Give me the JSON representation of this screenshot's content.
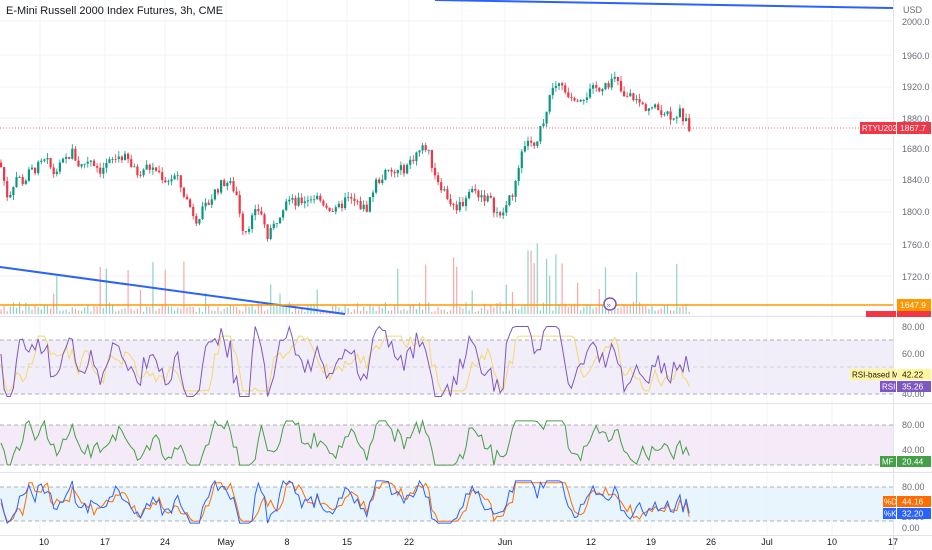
{
  "title": "E-Mini Russell 2000 Index Futures, 3h, CME",
  "currency": "USD",
  "colors": {
    "up": "#089981",
    "down": "#f23645",
    "vol_up": "#8fd3c7",
    "vol_down": "#f7a9a7",
    "grid": "#f0f3fa",
    "text": "#131722",
    "axis_text": "#6a6d78",
    "trend": "#2962ff",
    "level": "#ff9800",
    "rsi": "#7e57c2",
    "rsi_ma": "#f5d76e",
    "mf": "#43a047",
    "stoch_k": "#2962ff",
    "stoch_d": "#ff6d00"
  },
  "price_axis": {
    "ticks": [
      "2000.0",
      "1960.0",
      "1920.0",
      "1880.0",
      "1840.0",
      "1800.0",
      "1760.0",
      "1720.0",
      "1680.0"
    ]
  },
  "price_labels": {
    "symbol": {
      "text": "RTYU2023",
      "value": "1867.7"
    },
    "level": "1647.9",
    "volume": "Volume"
  },
  "rsi_axis": [
    "80.00",
    "60.00",
    "40.00"
  ],
  "rsi_labels": {
    "ma_name": "RSI-based MA",
    "ma_value": "42.22",
    "rsi_name": "RSI",
    "rsi_value": "35.26"
  },
  "mf_axis": [
    "80.00",
    "40.00"
  ],
  "mf_labels": {
    "name": "MF",
    "value": "20.44"
  },
  "stoch_axis": [
    "80.00",
    "20.00",
    "0.00"
  ],
  "stoch_labels": {
    "d_name": "%D",
    "d_value": "44.16",
    "k_name": "%K",
    "k_value": "32.20"
  },
  "time_axis": [
    "10",
    "17",
    "24",
    "May",
    "8",
    "15",
    "22",
    "Jun",
    "12",
    "19",
    "26",
    "Jul",
    "10",
    "17"
  ],
  "chart_data": {
    "type": "candlestick",
    "symbol": "RTYU2023",
    "interval": "3h",
    "price_range": [
      1660,
      2010
    ],
    "last_price": 1867.7,
    "horizontal_level": 1647.9,
    "close_path": [
      [
        0,
        1830
      ],
      [
        8,
        1790
      ],
      [
        16,
        1815
      ],
      [
        24,
        1808
      ],
      [
        30,
        1820
      ],
      [
        38,
        1825
      ],
      [
        46,
        1832
      ],
      [
        54,
        1818
      ],
      [
        62,
        1828
      ],
      [
        72,
        1842
      ],
      [
        80,
        1825
      ],
      [
        90,
        1835
      ],
      [
        100,
        1822
      ],
      [
        110,
        1830
      ],
      [
        120,
        1838
      ],
      [
        128,
        1832
      ],
      [
        136,
        1818
      ],
      [
        146,
        1825
      ],
      [
        156,
        1822
      ],
      [
        166,
        1810
      ],
      [
        176,
        1815
      ],
      [
        186,
        1790
      ],
      [
        196,
        1768
      ],
      [
        206,
        1780
      ],
      [
        216,
        1800
      ],
      [
        226,
        1810
      ],
      [
        236,
        1798
      ],
      [
        244,
        1752
      ],
      [
        252,
        1768
      ],
      [
        260,
        1780
      ],
      [
        268,
        1745
      ],
      [
        276,
        1765
      ],
      [
        286,
        1790
      ],
      [
        296,
        1784
      ],
      [
        306,
        1790
      ],
      [
        316,
        1792
      ],
      [
        326,
        1783
      ],
      [
        336,
        1775
      ],
      [
        346,
        1790
      ],
      [
        356,
        1785
      ],
      [
        366,
        1778
      ],
      [
        376,
        1808
      ],
      [
        386,
        1818
      ],
      [
        396,
        1818
      ],
      [
        406,
        1825
      ],
      [
        416,
        1840
      ],
      [
        426,
        1848
      ],
      [
        436,
        1815
      ],
      [
        446,
        1795
      ],
      [
        454,
        1780
      ],
      [
        462,
        1785
      ],
      [
        470,
        1800
      ],
      [
        480,
        1795
      ],
      [
        490,
        1788
      ],
      [
        500,
        1768
      ],
      [
        510,
        1790
      ],
      [
        518,
        1815
      ],
      [
        526,
        1860
      ],
      [
        536,
        1850
      ],
      [
        546,
        1888
      ],
      [
        556,
        1918
      ],
      [
        566,
        1908
      ],
      [
        576,
        1903
      ],
      [
        586,
        1905
      ],
      [
        596,
        1912
      ],
      [
        606,
        1918
      ],
      [
        616,
        1922
      ],
      [
        624,
        1900
      ],
      [
        632,
        1904
      ],
      [
        642,
        1893
      ],
      [
        652,
        1890
      ],
      [
        662,
        1888
      ],
      [
        672,
        1882
      ],
      [
        680,
        1885
      ],
      [
        688,
        1870
      ],
      [
        691,
        1866
      ]
    ]
  }
}
